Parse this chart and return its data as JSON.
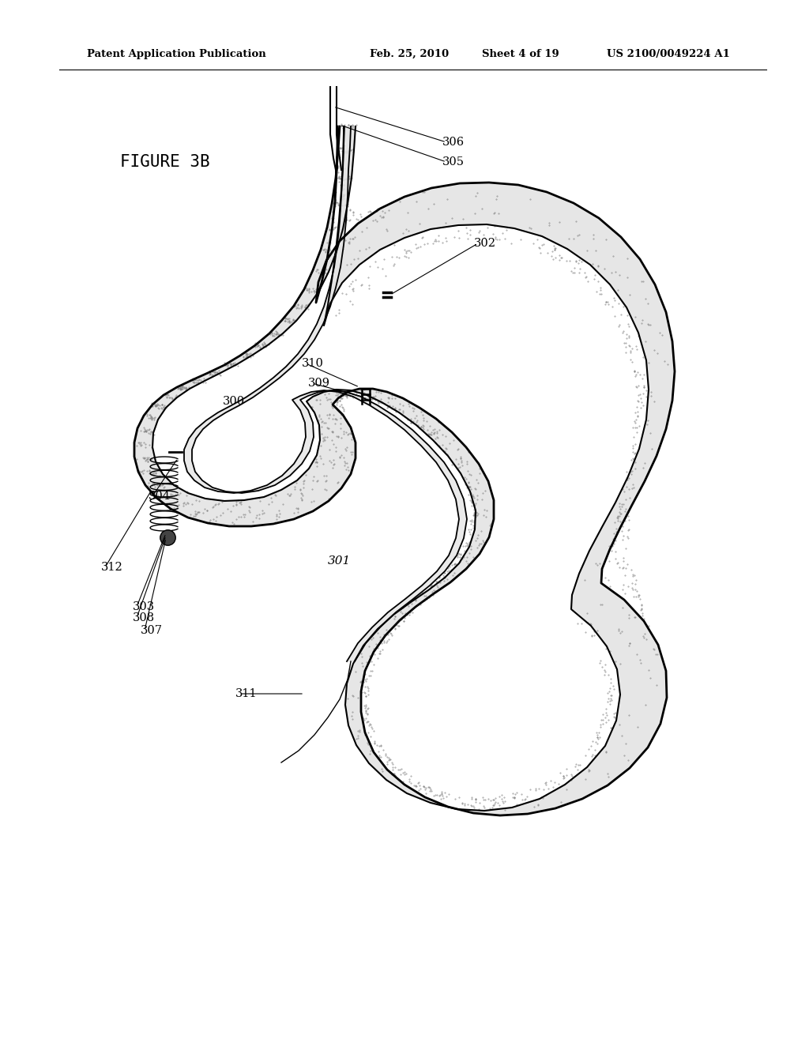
{
  "header_left": "Patent Application Publication",
  "header_mid1": "Feb. 25, 2010",
  "header_mid2": "Sheet 4 of 19",
  "header_right": "US 2100/0049224 A1",
  "figure_label": "FIGURE 3B",
  "bg_color": "#ffffff",
  "wall_stipple": "#bbbbbb",
  "lw_outer": 2.0,
  "lw_inner": 1.4,
  "lw_tube": 1.2
}
